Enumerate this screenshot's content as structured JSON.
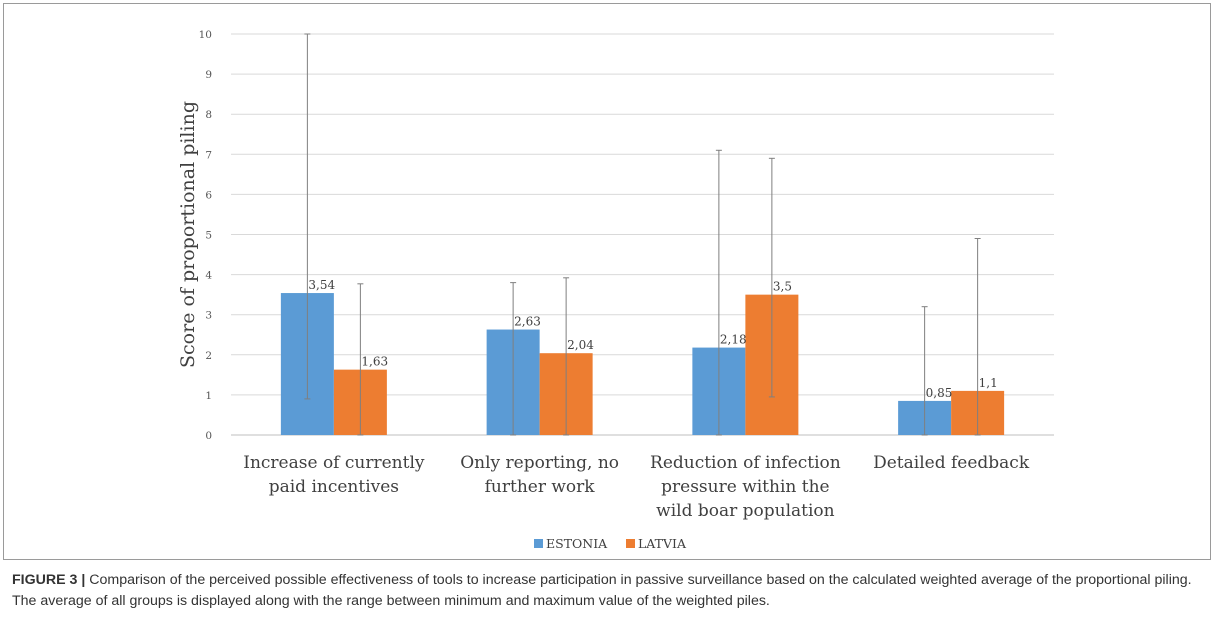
{
  "chart_data": {
    "type": "bar",
    "categories": [
      [
        "Increase of currently",
        "paid incentives"
      ],
      [
        "Only reporting, no",
        "further work"
      ],
      [
        "Reduction of infection",
        "pressure within the",
        "wild boar population"
      ],
      [
        "Detailed feedback"
      ]
    ],
    "series": [
      {
        "name": "ESTONIA",
        "color": "#5b9bd5",
        "values": [
          3.54,
          2.63,
          2.18,
          0.85
        ],
        "labels": [
          "3,54",
          "2,63",
          "2,18",
          "0,85"
        ],
        "range_min": [
          0.9,
          0,
          0,
          0
        ],
        "range_max": [
          10,
          3.8,
          7.1,
          3.2
        ]
      },
      {
        "name": "LATVIA",
        "color": "#ed7d31",
        "values": [
          1.63,
          2.04,
          3.5,
          1.1
        ],
        "labels": [
          "1,63",
          "2,04",
          "3,5",
          "1,1"
        ],
        "range_min": [
          0,
          0,
          0.95,
          0
        ],
        "range_max": [
          3.77,
          3.92,
          6.9,
          4.9
        ]
      }
    ],
    "ylabel": "Score of proportional piling",
    "ylim": [
      0,
      10
    ],
    "yticks": [
      0,
      1,
      2,
      3,
      4,
      5,
      6,
      7,
      8,
      9,
      10
    ],
    "grid": true,
    "legend": "bottom"
  },
  "caption": {
    "label": "FIGURE 3 |",
    "text": " Comparison of the perceived possible effectiveness of tools to increase participation in passive surveillance based on the calculated weighted average of the proportional piling. The average of all groups is displayed along with the range between minimum and maximum value of the weighted piles."
  }
}
